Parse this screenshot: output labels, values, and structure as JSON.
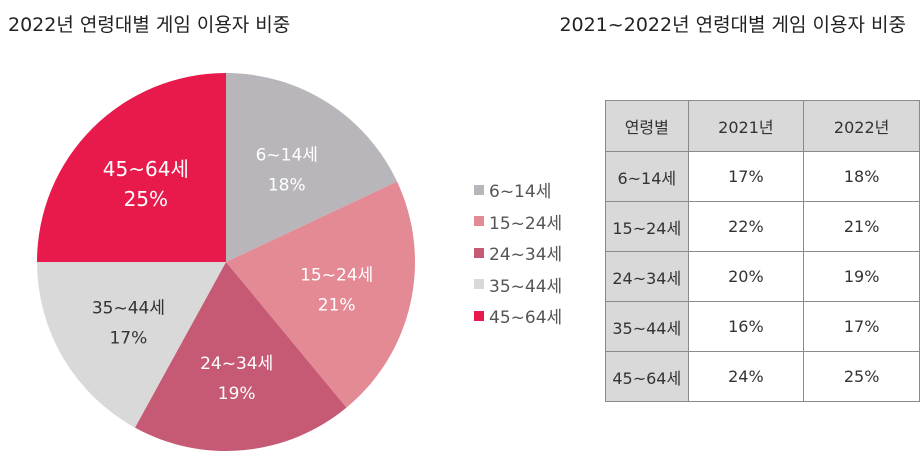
{
  "titles": {
    "left": "2022년 연령대별 게임 이용자 비중",
    "right": "2021~2022년 연령대별 게임 이용자 비중"
  },
  "chart_data": {
    "type": "pie",
    "title": "2022년 연령대별 게임 이용자 비중",
    "categories": [
      "6~14세",
      "15~24세",
      "24~34세",
      "35~44세",
      "45~64세"
    ],
    "values": [
      18,
      21,
      19,
      17,
      25
    ],
    "labels": [
      "18%",
      "21%",
      "19%",
      "17%",
      "25%"
    ],
    "colors": [
      "#b8b6ba",
      "#e38a95",
      "#c65a75",
      "#d9d9d9",
      "#e8194b"
    ],
    "legend_position": "right"
  },
  "table": {
    "headers": [
      "연령별",
      "2021년",
      "2022년"
    ],
    "rows": [
      [
        "6~14세",
        "17%",
        "18%"
      ],
      [
        "15~24세",
        "22%",
        "21%"
      ],
      [
        "24~34세",
        "20%",
        "19%"
      ],
      [
        "35~44세",
        "16%",
        "17%"
      ],
      [
        "45~64세",
        "24%",
        "25%"
      ]
    ]
  }
}
